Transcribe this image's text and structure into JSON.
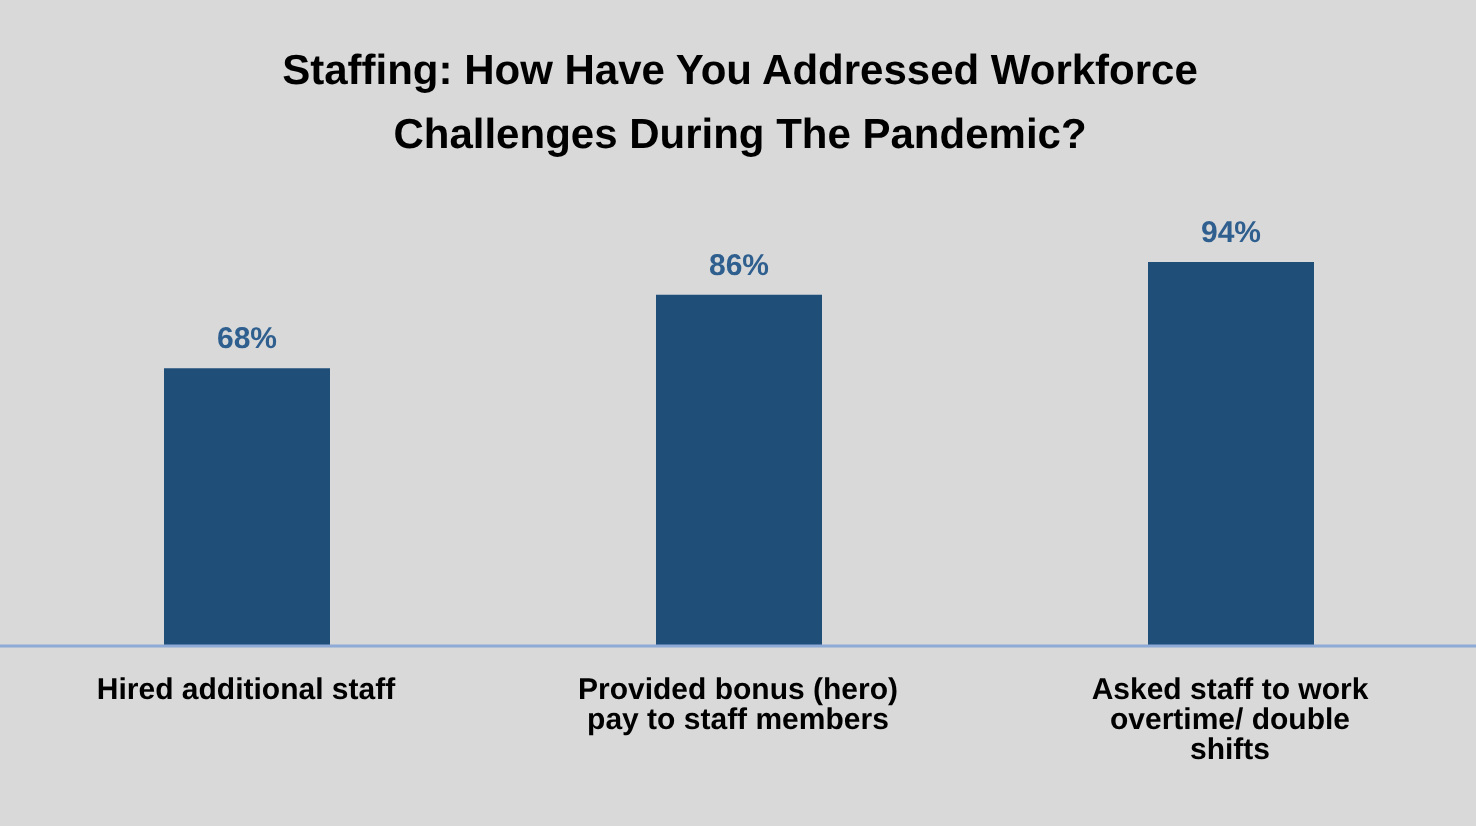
{
  "chart_data": {
    "type": "bar",
    "title": "Staffing: How Have You Addressed Workforce Challenges During The Pandemic?",
    "categories": [
      "Hired additional staff",
      "Provided bonus (hero) pay to staff members",
      "Asked staff to work overtime/ double shifts"
    ],
    "values": [
      68,
      86,
      94
    ],
    "value_labels": [
      "68%",
      "86%",
      "94%"
    ],
    "color": "#1f4e79",
    "grid": false,
    "legend": false
  }
}
